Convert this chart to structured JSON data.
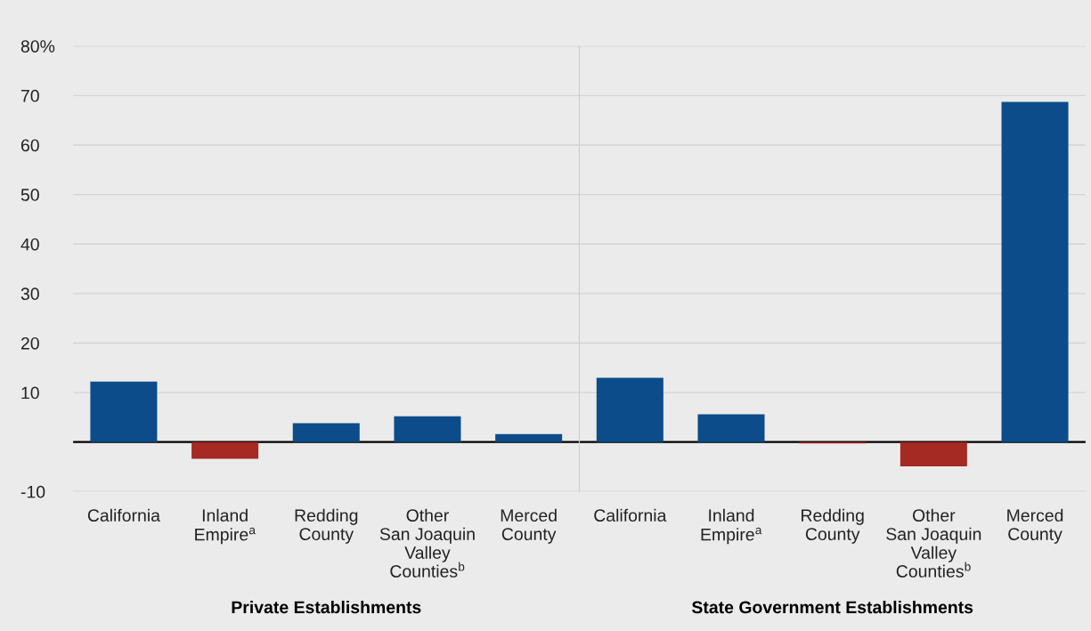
{
  "chart_data": [
    {
      "type": "bar",
      "xlabel": "Private Establishments",
      "categories": [
        "California",
        "Inland\nEmpire$^{a}$",
        "Redding\nCounty",
        "Other\nSan Joaquin\nValley\nCounties$^{b}$",
        "Merced\nCounty"
      ],
      "values": [
        12.2,
        -3.4,
        3.8,
        5.2,
        1.6
      ],
      "colors": [
        "#0d4c8a",
        "#a52a24",
        "#0d4c8a",
        "#0d4c8a",
        "#0d4c8a"
      ],
      "ylim": [
        -10,
        80
      ],
      "yticks": [
        -10,
        10,
        20,
        30,
        40,
        50,
        60,
        70,
        {
          "value": 80,
          "label": "80%"
        }
      ],
      "grid": "y",
      "ref_lines": [
        {
          "axis": "y",
          "value": 0,
          "label": null,
          "color": "#000000"
        }
      ]
    },
    {
      "type": "bar",
      "xlabel": "State Government Establishments",
      "categories": [
        "California",
        "Inland\nEmpire$^{a}$",
        "Redding\nCounty",
        "Other\nSan Joaquin\nValley\nCounties$^{b}$",
        "Merced\nCounty"
      ],
      "values": [
        13.0,
        5.6,
        -0.3,
        -4.9,
        68.7
      ],
      "colors": [
        "#0d4c8a",
        "#0d4c8a",
        "#a52a24",
        "#a52a24",
        "#0d4c8a"
      ],
      "ylim": [
        -10,
        80
      ],
      "yticks": [
        -10,
        10,
        20,
        30,
        40,
        50,
        60,
        70,
        80
      ],
      "tick_labels": "x",
      "grid": "y",
      "ref_lines": [
        {
          "axis": "y",
          "value": 0,
          "label": null,
          "color": "#000000"
        }
      ]
    }
  ]
}
